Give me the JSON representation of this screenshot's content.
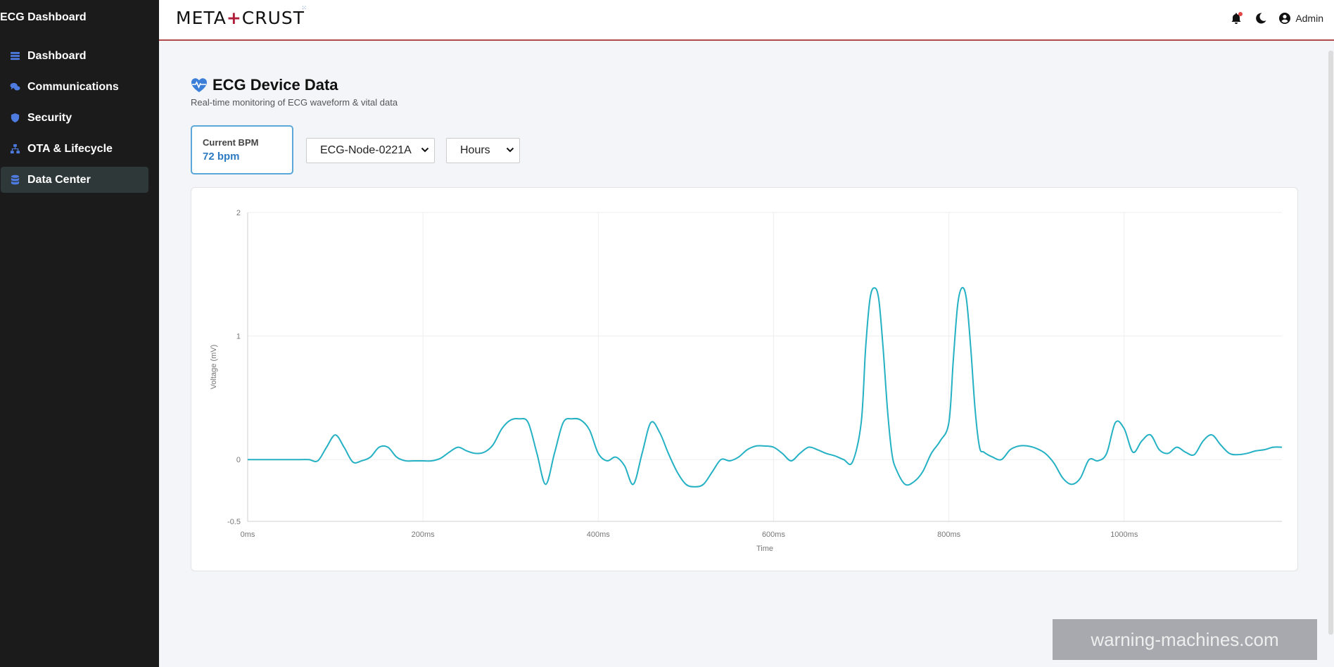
{
  "app": {
    "brand": "ECG Dashboard"
  },
  "sidebar": {
    "items": [
      {
        "label": "Dashboard",
        "icon": "dashboard-icon"
      },
      {
        "label": "Communications",
        "icon": "comments-icon"
      },
      {
        "label": "Security",
        "icon": "shield-icon"
      },
      {
        "label": "OTA & Lifecycle",
        "icon": "network-icon"
      },
      {
        "label": "Data Center",
        "icon": "database-icon",
        "active": true
      }
    ]
  },
  "header": {
    "logo_text_left": "META",
    "logo_plus": "+",
    "logo_text_right": "CRUST",
    "logo_dots": "⁙",
    "user_label": "Admin"
  },
  "page": {
    "title": "ECG Device Data",
    "subtitle": "Real-time monitoring of ECG waveform & vital data",
    "bpm_label": "Current BPM",
    "bpm_value": "72 bpm",
    "device_select": "ECG-Node-0221A",
    "range_select": "Hours"
  },
  "colors": {
    "accent": "#2f7bc3",
    "line": "#24b1c4",
    "header_border": "#b14b4b",
    "sidebar_bg": "#1b1b1b"
  },
  "chart_data": {
    "type": "line",
    "xlabel": "Time",
    "ylabel": "Voltage (mV)",
    "x_tick_labels": [
      "0ms",
      "200ms",
      "400ms",
      "600ms",
      "800ms",
      "1000ms"
    ],
    "y_tick_labels": [
      "-0.5",
      "0",
      "1",
      "2"
    ],
    "xlim": [
      0,
      1180
    ],
    "ylim": [
      -0.5,
      2
    ],
    "grid": true,
    "series": [
      {
        "x": [
          0,
          20,
          40,
          60,
          70,
          80,
          90,
          100,
          110,
          120,
          130,
          140,
          150,
          160,
          170,
          180,
          190,
          200,
          210,
          220,
          230,
          240,
          250,
          260,
          270,
          280,
          290,
          300,
          310,
          320,
          330,
          340,
          350,
          360,
          370,
          380,
          390,
          400,
          410,
          420,
          430,
          440,
          450,
          460,
          470,
          480,
          490,
          500,
          510,
          520,
          530,
          540,
          550,
          560,
          570,
          580,
          590,
          600,
          610,
          620,
          630,
          640,
          650,
          660,
          670,
          680,
          690,
          700,
          705,
          710,
          715,
          720,
          725,
          730,
          735,
          740,
          750,
          760,
          770,
          780,
          790,
          800,
          805,
          810,
          815,
          820,
          825,
          830,
          835,
          840,
          850,
          860,
          870,
          880,
          890,
          900,
          910,
          920,
          930,
          940,
          950,
          960,
          970,
          980,
          990,
          1000,
          1010,
          1020,
          1030,
          1040,
          1050,
          1060,
          1070,
          1080,
          1090,
          1100,
          1110,
          1120,
          1130,
          1140,
          1150,
          1160,
          1170,
          1180
        ],
        "values": [
          0,
          0,
          0,
          0,
          0,
          -0.01,
          0.1,
          0.2,
          0.1,
          -0.02,
          -0.01,
          0.02,
          0.1,
          0.1,
          0.02,
          -0.01,
          -0.01,
          -0.01,
          -0.01,
          0.01,
          0.06,
          0.1,
          0.07,
          0.05,
          0.06,
          0.12,
          0.25,
          0.32,
          0.33,
          0.3,
          0.05,
          -0.2,
          0.05,
          0.3,
          0.33,
          0.32,
          0.24,
          0.05,
          -0.01,
          0.02,
          -0.05,
          -0.2,
          0.05,
          0.3,
          0.22,
          0.05,
          -0.1,
          -0.2,
          -0.22,
          -0.2,
          -0.1,
          0.0,
          -0.01,
          0.02,
          0.08,
          0.11,
          0.11,
          0.1,
          0.05,
          -0.01,
          0.05,
          0.1,
          0.08,
          0.05,
          0.03,
          0.0,
          -0.02,
          0.3,
          0.9,
          1.3,
          1.39,
          1.3,
          0.9,
          0.4,
          0.05,
          -0.08,
          -0.2,
          -0.18,
          -0.1,
          0.05,
          0.15,
          0.3,
          0.8,
          1.25,
          1.39,
          1.3,
          0.9,
          0.4,
          0.1,
          0.06,
          0.02,
          0.0,
          0.08,
          0.11,
          0.11,
          0.09,
          0.05,
          -0.03,
          -0.15,
          -0.2,
          -0.15,
          0.0,
          -0.01,
          0.05,
          0.3,
          0.25,
          0.06,
          0.15,
          0.2,
          0.08,
          0.05,
          0.1,
          0.06,
          0.04,
          0.15,
          0.2,
          0.12,
          0.05,
          0.04,
          0.05,
          0.07,
          0.08,
          0.1,
          0.1
        ]
      }
    ]
  }
}
